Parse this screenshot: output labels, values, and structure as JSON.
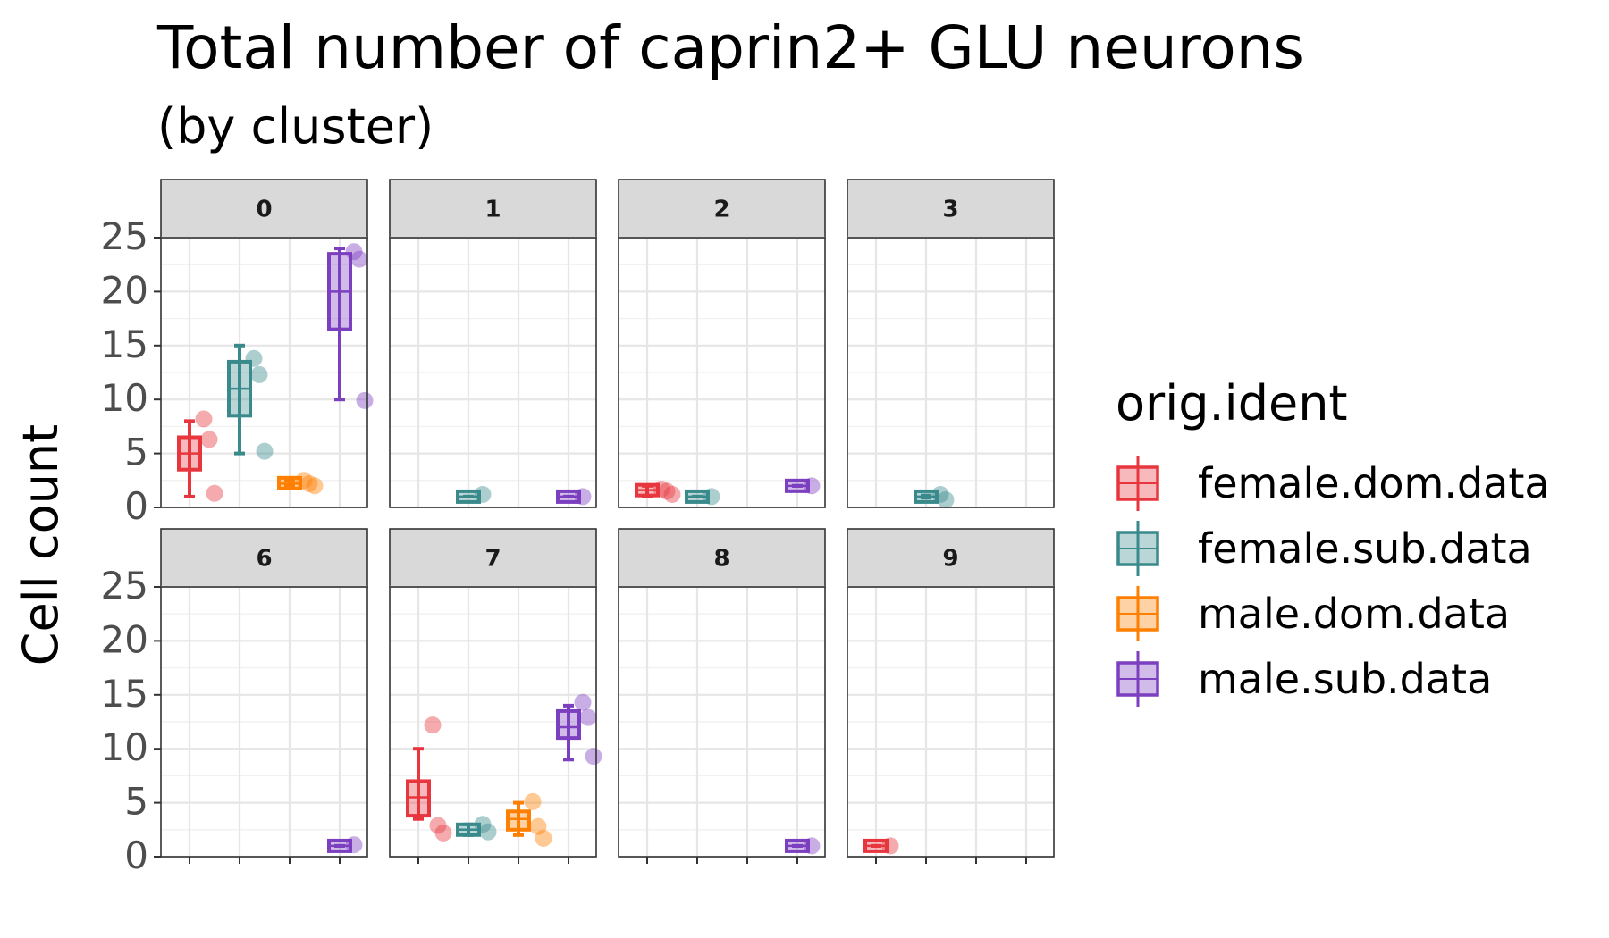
{
  "chart_data": {
    "type": "box",
    "title": "Total number of caprin2+ GLU neurons",
    "subtitle": "(by cluster)",
    "ylabel": "Cell count",
    "xlabel": "",
    "ylim": [
      0,
      25
    ],
    "yticks": [
      0,
      5,
      10,
      15,
      20,
      25
    ],
    "grid": true,
    "legend_title": "orig.ident",
    "legend_position": "right",
    "series": [
      {
        "name": "female.dom.data",
        "color": "#E8363F"
      },
      {
        "name": "female.sub.data",
        "color": "#3A8A8C"
      },
      {
        "name": "male.dom.data",
        "color": "#FF7F00"
      },
      {
        "name": "male.sub.data",
        "color": "#7B3FBF"
      }
    ],
    "panels": [
      {
        "label": "0",
        "groups": [
          {
            "series": 0,
            "q1": 3.5,
            "median": 5,
            "q3": 6.5,
            "min": 1,
            "max": 8,
            "points": [
              8.2,
              6.3,
              1.3
            ]
          },
          {
            "series": 1,
            "q1": 8.5,
            "median": 11,
            "q3": 13.5,
            "min": 5,
            "max": 15,
            "points": [
              13.8,
              12.3,
              5.2
            ]
          },
          {
            "series": 2,
            "q1": 2,
            "median": 2.2,
            "q3": 2.5,
            "min": 2,
            "max": 2.5,
            "points": [
              2.5,
              2.2,
              2
            ]
          },
          {
            "series": 3,
            "q1": 16.5,
            "median": 20,
            "q3": 23.5,
            "min": 10,
            "max": 24,
            "points": [
              23.7,
              23,
              9.9
            ]
          }
        ]
      },
      {
        "label": "1",
        "groups": [
          {
            "series": 1,
            "q1": 1,
            "median": 1,
            "q3": 1,
            "min": 1,
            "max": 1,
            "points": [
              1.2
            ]
          },
          {
            "series": 3,
            "q1": 1,
            "median": 1,
            "q3": 1,
            "min": 1,
            "max": 1,
            "points": [
              1
            ]
          }
        ]
      },
      {
        "label": "2",
        "groups": [
          {
            "series": 0,
            "q1": 1.3,
            "median": 1.6,
            "q3": 1.9,
            "min": 1,
            "max": 2,
            "points": [
              1.7,
              1.5,
              1.2
            ]
          },
          {
            "series": 1,
            "q1": 1,
            "median": 1,
            "q3": 1,
            "min": 1,
            "max": 1,
            "points": [
              1
            ]
          },
          {
            "series": 3,
            "q1": 2,
            "median": 2,
            "q3": 2,
            "min": 2,
            "max": 2,
            "points": [
              2
            ]
          }
        ]
      },
      {
        "label": "3",
        "groups": [
          {
            "series": 1,
            "q1": 0.9,
            "median": 1,
            "q3": 1.1,
            "min": 0.9,
            "max": 1.1,
            "points": [
              1.2,
              0.7
            ]
          }
        ]
      },
      {
        "label": "6",
        "groups": [
          {
            "series": 3,
            "q1": 1,
            "median": 1,
            "q3": 1,
            "min": 1,
            "max": 1,
            "points": [
              1.1
            ]
          }
        ]
      },
      {
        "label": "7",
        "groups": [
          {
            "series": 0,
            "q1": 3.8,
            "median": 5.5,
            "q3": 7,
            "min": 3.5,
            "max": 10,
            "points": [
              12.2,
              2.9,
              2.2
            ]
          },
          {
            "series": 1,
            "q1": 2.2,
            "median": 2.5,
            "q3": 2.8,
            "min": 2,
            "max": 3,
            "points": [
              3,
              2.3
            ]
          },
          {
            "series": 2,
            "q1": 2.5,
            "median": 3.5,
            "q3": 4.2,
            "min": 2,
            "max": 5,
            "points": [
              5.1,
              2.8,
              1.7
            ]
          },
          {
            "series": 3,
            "q1": 11,
            "median": 12,
            "q3": 13.5,
            "min": 9,
            "max": 14,
            "points": [
              14.3,
              12.9,
              9.3
            ]
          }
        ]
      },
      {
        "label": "8",
        "groups": [
          {
            "series": 3,
            "q1": 1,
            "median": 1,
            "q3": 1,
            "min": 1,
            "max": 1,
            "points": [
              1
            ]
          }
        ]
      },
      {
        "label": "9",
        "groups": [
          {
            "series": 0,
            "q1": 1,
            "median": 1,
            "q3": 1,
            "min": 1,
            "max": 1,
            "points": [
              1
            ]
          }
        ]
      }
    ]
  }
}
